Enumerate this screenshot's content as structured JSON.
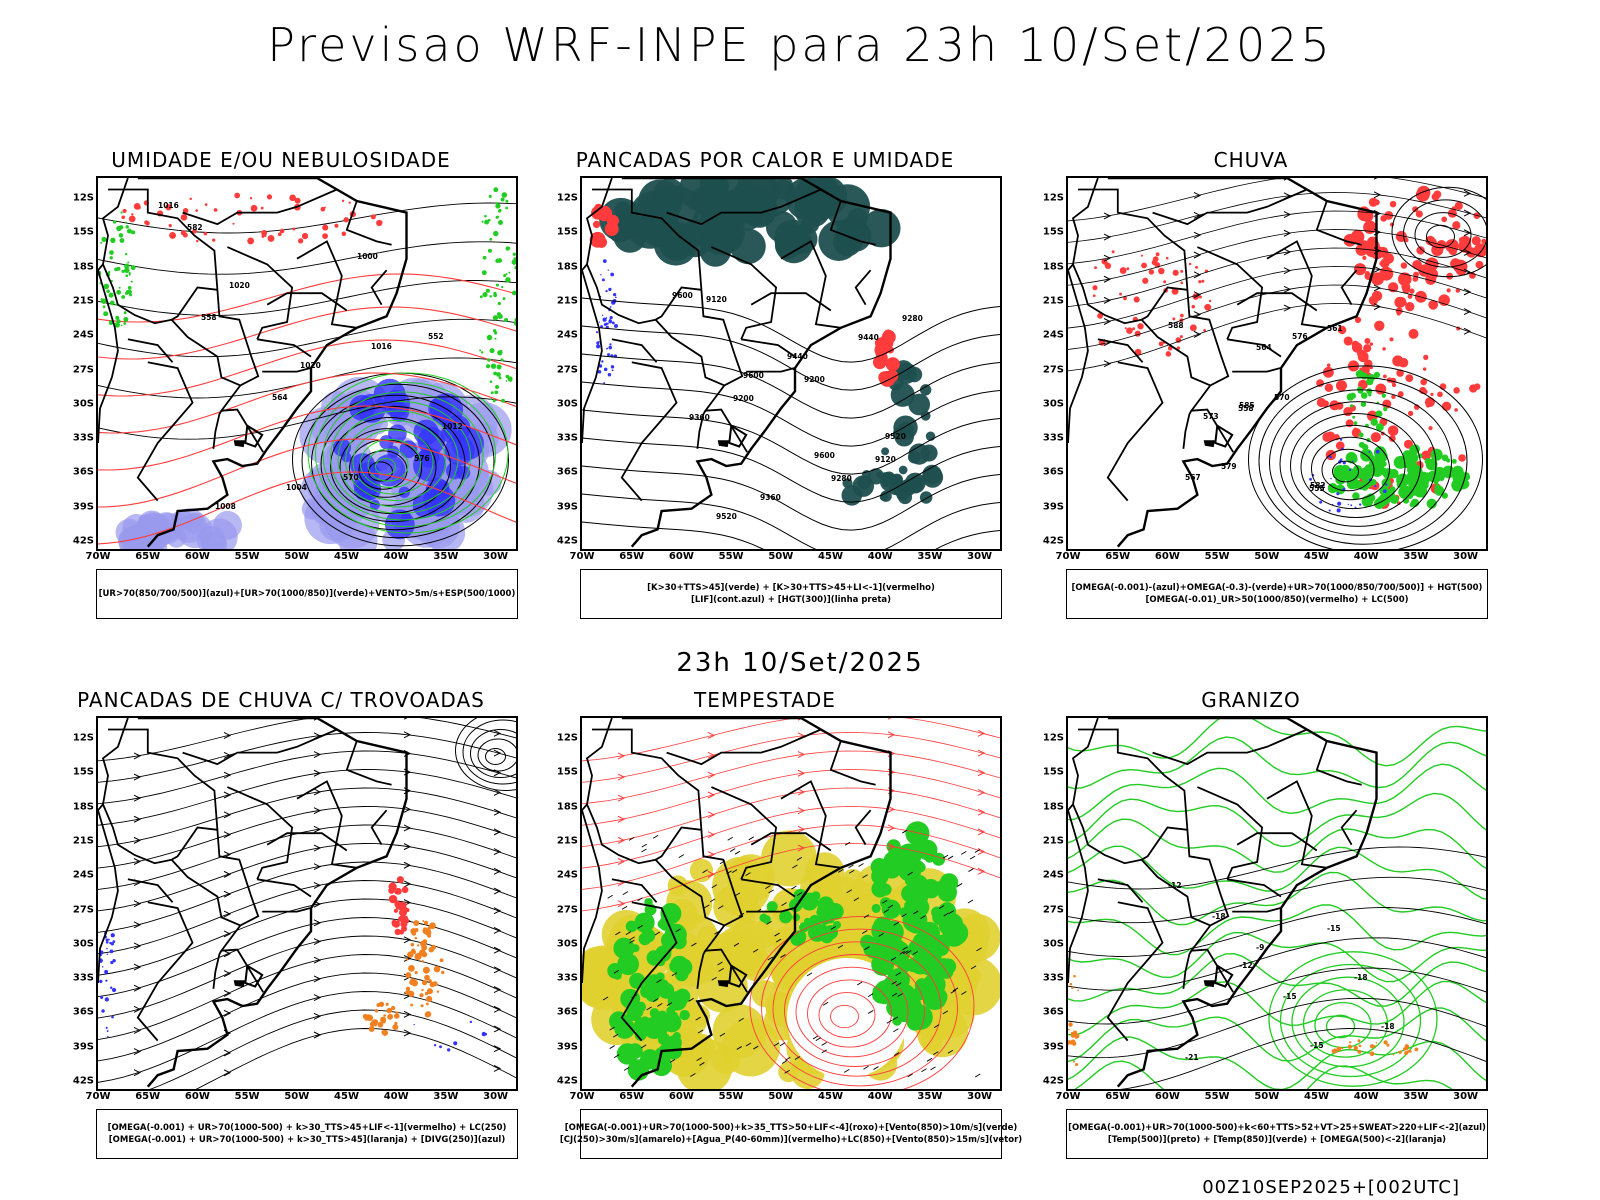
{
  "main_title": "Previsao WRF-INPE  para 23h 10/Set/2025",
  "mid_title": "23h 10/Set/2025",
  "footer": "00Z10SEP2025+[002UTC]",
  "lat_ticks": [
    "12S",
    "15S",
    "18S",
    "21S",
    "24S",
    "27S",
    "30S",
    "33S",
    "36S",
    "39S",
    "42S"
  ],
  "lon_ticks": [
    "70W",
    "65W",
    "60W",
    "55W",
    "50W",
    "45W",
    "40W",
    "35W",
    "30W"
  ],
  "colors": {
    "contour": "#000000",
    "red": "#ff3b3b",
    "green": "#22cc22",
    "blue": "#3333ff",
    "lightblue": "#9999ee",
    "teal": "#1f4f4f",
    "yellow": "#e0d030",
    "orange": "#f08020"
  },
  "panels": [
    {
      "id": "umidade",
      "title": "UMIDADE E/OU NEBULOSIDADE",
      "legend": [
        "[UR>70(850/700/500)](azul)+[UR>70(1000/850)](verde)+VENTO>5m/s+ESP(500/1000)"
      ],
      "labels": [
        "1016",
        "1020",
        "1020",
        "1016",
        "1012",
        "1008",
        "1004",
        "1000",
        "552",
        "558",
        "564",
        "570",
        "576",
        "582"
      ]
    },
    {
      "id": "pancadas-calor",
      "title": "PANCADAS POR CALOR E UMIDADE",
      "legend": [
        "[K>30+TTS>45](verde) + [K>30+TTS>45+LI<-1](vermelho)",
        "[LIF](cont.azul) + [HGT(300)](linha preta)"
      ],
      "labels": [
        "9600",
        "9600",
        "9600",
        "9520",
        "9520",
        "9440",
        "9440",
        "9360",
        "9360",
        "9280",
        "9280",
        "9200",
        "9200",
        "9120",
        "9120"
      ]
    },
    {
      "id": "chuva",
      "title": "CHUVA",
      "legend": [
        "[OMEGA(-0.001)-(azul)+OMEGA(-0.3)-(verde)+UR>70(1000/850/700/500)] + HGT(500)",
        "[OMEGA(-0.01)_UR>50(1000/850)(vermelho) + LC(500)"
      ],
      "labels": [
        "588",
        "585",
        "582",
        "579",
        "576",
        "573",
        "570",
        "567",
        "564",
        "561",
        "558",
        "555"
      ]
    },
    {
      "id": "pancadas-trovoadas",
      "title": "PANCADAS DE CHUVA C/ TROVOADAS",
      "legend": [
        "[OMEGA(-0.001) + UR>70(1000-500) + k>30_TTS>45+LIF<-1](vermelho) + LC(250)",
        "[OMEGA(-0.001) + UR>70(1000-500) + k>30_TTS>45](laranja) + [DIVG(250)](azul)"
      ],
      "labels": []
    },
    {
      "id": "tempestade",
      "title": "TEMPESTADE",
      "legend": [
        "[OMEGA(-0.001)+UR>70(1000-500)+k>35_TTS>50+LIF<-4](roxo)+[Vento(850)>10m/s](verde)",
        "[CJ(250)>30m/s](amarelo)+[Agua_P(40-60mm)](vermelho)+LC(850)+[Vento(850)>15m/s](vetor)"
      ],
      "labels": []
    },
    {
      "id": "granizo",
      "title": "GRANIZO",
      "legend": [
        "[OMEGA(-0.001)+UR>70(1000-500)+k<60+TTS>52+VT>25+SWEAT>220+LIF<-2](azul)",
        "[Temp(500)](preto) + [Temp(850)](verde) + [OMEGA(500)<-2](laranja)"
      ],
      "labels": [
        "-12",
        "-12",
        "-15",
        "-18",
        "-18",
        "-15",
        "-18",
        "-21",
        "-9",
        "-15"
      ]
    }
  ]
}
